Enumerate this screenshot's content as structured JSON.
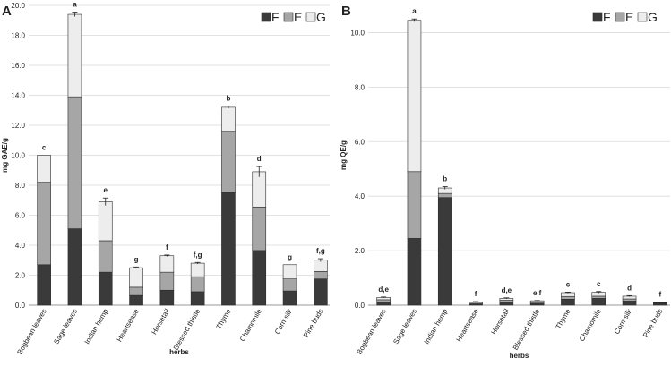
{
  "chart_data": [
    {
      "panel": "A",
      "type": "bar",
      "stacked": true,
      "xlabel": "herbs",
      "ylabel": "mg GAE/g",
      "ylim": [
        0,
        20
      ],
      "ytick_step": 2,
      "grid": true,
      "legend_position": "top-right",
      "categories": [
        "Bogbean leaves",
        "Sage leaves",
        "Indian hemp",
        "Heartsease",
        "Horsetail",
        "Blessed thistle",
        "Thyme",
        "Chamomile",
        "Corn silk",
        "Pine buds"
      ],
      "series": [
        {
          "name": "F",
          "color": "#3a3a3a",
          "values": [
            2.7,
            5.1,
            2.2,
            0.65,
            1.0,
            0.9,
            7.5,
            3.65,
            0.95,
            1.75
          ]
        },
        {
          "name": "E",
          "color": "#a6a6a6",
          "values": [
            5.5,
            8.8,
            2.1,
            0.55,
            1.2,
            1.0,
            4.1,
            2.9,
            0.8,
            0.5
          ]
        },
        {
          "name": "G",
          "color": "#ededed",
          "values": [
            1.8,
            5.5,
            2.6,
            1.3,
            1.1,
            0.9,
            1.6,
            2.35,
            0.95,
            0.75
          ]
        }
      ],
      "totals": [
        10.0,
        19.4,
        6.9,
        2.5,
        3.3,
        2.8,
        13.2,
        8.9,
        2.7,
        3.0
      ],
      "errors": [
        0.0,
        0.15,
        0.25,
        0.05,
        0.05,
        0.05,
        0.08,
        0.35,
        0.0,
        0.1
      ],
      "sig_letters": [
        "c",
        "a",
        "e",
        "g",
        "f",
        "f,g",
        "b",
        "d",
        "g",
        "f,g"
      ]
    },
    {
      "panel": "B",
      "type": "bar",
      "stacked": true,
      "xlabel": "herbs",
      "ylabel": "mg QE/g",
      "ylim": [
        0,
        11
      ],
      "ytick_step": 2,
      "grid": true,
      "legend_position": "top-right",
      "categories": [
        "Bogbean leaves",
        "Sage leaves",
        "Indian hemp",
        "Heartsease",
        "Horsetail",
        "Blessed thistle",
        "Thyme",
        "Chamomile",
        "Corn silk",
        "Pine buds"
      ],
      "series": [
        {
          "name": "F",
          "color": "#3a3a3a",
          "values": [
            0.12,
            2.45,
            3.95,
            0.04,
            0.12,
            0.07,
            0.22,
            0.25,
            0.15,
            0.07
          ]
        },
        {
          "name": "E",
          "color": "#a6a6a6",
          "values": [
            0.08,
            2.45,
            0.15,
            0.03,
            0.06,
            0.04,
            0.1,
            0.08,
            0.08,
            0.02
          ]
        },
        {
          "name": "G",
          "color": "#ededed",
          "values": [
            0.08,
            5.55,
            0.2,
            0.05,
            0.07,
            0.05,
            0.14,
            0.14,
            0.1,
            0.01
          ]
        }
      ],
      "totals": [
        0.28,
        10.45,
        4.3,
        0.12,
        0.25,
        0.16,
        0.46,
        0.47,
        0.33,
        0.1
      ],
      "errors": [
        0.02,
        0.05,
        0.05,
        0.01,
        0.02,
        0.01,
        0.02,
        0.03,
        0.02,
        0.01
      ],
      "sig_letters": [
        "d,e",
        "a",
        "b",
        "f",
        "d,e",
        "e,f",
        "c",
        "c",
        "d",
        "f"
      ]
    }
  ]
}
